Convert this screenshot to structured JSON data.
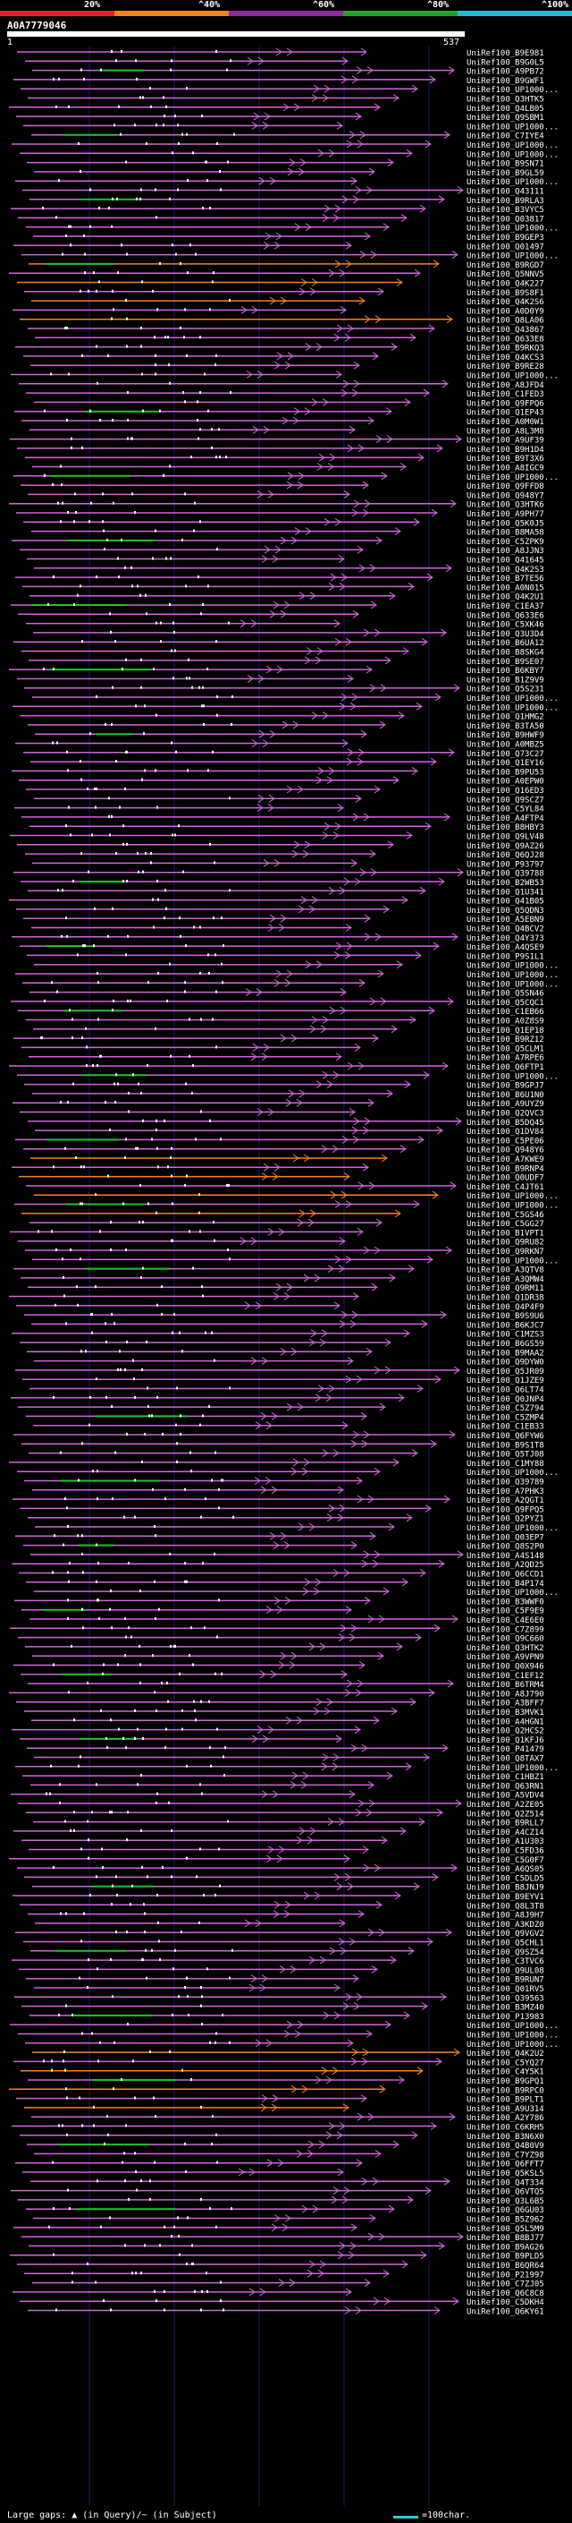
{
  "legend": {
    "segments": [
      {
        "label": "20%",
        "color": "#e3212a"
      },
      {
        "label": "^40%",
        "color": "#f58220"
      },
      {
        "label": "^60%",
        "color": "#8b2b9e"
      },
      {
        "label": "^80%",
        "color": "#22a32a"
      },
      {
        "label": "^100%",
        "color": "#28b8d6"
      }
    ]
  },
  "query": {
    "id": "A0A7779046",
    "start": "1",
    "end": "537"
  },
  "footer": {
    "text": "Large gaps: ▲ (in Query)/~ (in Subject)",
    "scale_label": "=100char."
  },
  "hits": [
    "UniRef100_B9E981",
    "UniRef100_B9G0L5",
    "UniRef100_A9PB72",
    "UniRef100_B9GWF1",
    "UniRef100_UP1000...",
    "UniRef100_Q3HTK5",
    "UniRef100_Q4LB05",
    "UniRef100_Q9SBM1",
    "UniRef100_UP1000...",
    "UniRef100_C7IYE4",
    "UniRef100_UP1000...",
    "UniRef100_UP1000...",
    "UniRef100_B9SN71",
    "UniRef100_B9GL59",
    "UniRef100_UP1000...",
    "UniRef100_Q43111",
    "UniRef100_B9RLA3",
    "UniRef100_B3VYC5",
    "UniRef100_Q03817",
    "UniRef100_UP1000...",
    "UniRef100_B9GEP3",
    "UniRef100_Q01497",
    "UniRef100_UP1000...",
    "UniRef100_B9RGD7",
    "UniRef100_Q5NNV5",
    "UniRef100_Q4K227",
    "UniRef100_B9S8F1",
    "UniRef100_Q4K2S6",
    "UniRef100_A0D0Y9",
    "UniRef100_Q8LA06",
    "UniRef100_Q43867",
    "UniRef100_Q633E8",
    "UniRef100_B9RKQ3",
    "UniRef100_Q4KCS3",
    "UniRef100_B9RE28",
    "UniRef100_UP1000...",
    "UniRef100_A8JFD4",
    "UniRef100_C1FED3",
    "UniRef100_Q9FPQ6",
    "UniRef100_Q1EP43",
    "UniRef100_A0M0W1",
    "UniRef100_A8L3M8",
    "UniRef100_A9UF39",
    "UniRef100_B9H1D4",
    "UniRef100_B9T3X6",
    "UniRef100_A8IGC9",
    "UniRef100_UP1000...",
    "UniRef100_Q9FFD8",
    "UniRef100_Q948Y7",
    "UniRef100_Q3HTK6",
    "UniRef100_A9PH77",
    "UniRef100_Q5K0J5",
    "UniRef100_B8MA58",
    "UniRef100_C5ZPK9",
    "UniRef100_A8JJN3",
    "UniRef100_Q41645",
    "UniRef100_Q4K2S3",
    "UniRef100_B7TE56",
    "UniRef100_A0N015",
    "UniRef100_Q4K2U1",
    "UniRef100_C1EA37",
    "UniRef100_Q633E6",
    "UniRef100_C5XK46",
    "UniRef100_Q3U3D4",
    "UniRef100_B6UA12",
    "UniRef100_B8SKG4",
    "UniRef100_B9SE07",
    "UniRef100_B6KBY7",
    "UniRef100_B1Z9V9",
    "UniRef100_Q5S231",
    "UniRef100_UP1000...",
    "UniRef100_UP1000...",
    "UniRef100_Q1HMG2",
    "UniRef100_B3TA50",
    "UniRef100_B9HWF9",
    "UniRef100_A0MBZ5",
    "UniRef100_Q73C27",
    "UniRef100_Q1EY16",
    "UniRef100_B9PU53",
    "UniRef100_A0EPW0",
    "UniRef100_Q16ED3",
    "UniRef100_Q9SCZ7",
    "UniRef100_C5YL84",
    "UniRef100_A4FTP4",
    "UniRef100_B8HBY3",
    "UniRef100_Q9LV48",
    "UniRef100_Q9AZ26",
    "UniRef100_Q6QJ28",
    "UniRef100_P93797",
    "UniRef100_Q39788",
    "UniRef100_B2WB53",
    "UniRef100_Q1U341",
    "UniRef100_Q41B05",
    "UniRef100_Q5QDN3",
    "UniRef100_A5EBN9",
    "UniRef100_Q4BCV2",
    "UniRef100_Q4Y373",
    "UniRef100_A4QSE9",
    "UniRef100_P9S1L1",
    "UniRef100_UP1000...",
    "UniRef100_UP1000...",
    "UniRef100_UP1000...",
    "UniRef100_Q5SN46",
    "UniRef100_Q5CQC1",
    "UniRef100_C1EB66",
    "UniRef100_A0Z8S9",
    "UniRef100_Q1EP18",
    "UniRef100_B9RZ12",
    "UniRef100_Q5CLM1",
    "UniRef100_A7RPE6",
    "UniRef100_Q6FTP1",
    "UniRef100_UP1000...",
    "UniRef100_B9GPJ7",
    "UniRef100_B6U1N0",
    "UniRef100_A9UYZ9",
    "UniRef100_Q2QVC3",
    "UniRef100_B5DQ45",
    "UniRef100_Q1DV84",
    "UniRef100_C5PE06",
    "UniRef100_Q948Y6",
    "UniRef100_A7KWE9",
    "UniRef100_B9RNP4",
    "UniRef100_Q0UDF7",
    "UniRef100_C4JT61",
    "UniRef100_UP1000...",
    "UniRef100_UP1000...",
    "UniRef100_C5GS46",
    "UniRef100_C5GG27",
    "UniRef100_B1VPT1",
    "UniRef100_Q9RU82",
    "UniRef100_Q9RKN7",
    "UniRef100_UP1000...",
    "UniRef100_A3QTV8",
    "UniRef100_A3QMW4",
    "UniRef100_Q9RM11",
    "UniRef100_Q1DR38",
    "UniRef100_Q4P4F9",
    "UniRef100_B9S9U6",
    "UniRef100_B6KJC7",
    "UniRef100_C1MZS3",
    "UniRef100_B6GS59",
    "UniRef100_B9MAA2",
    "UniRef100_Q9DYW0",
    "UniRef100_Q5JR09",
    "UniRef100_Q1JZE9",
    "UniRef100_Q6LT74",
    "UniRef100_Q0JNP4",
    "UniRef100_C5Z794",
    "UniRef100_C5ZMP4",
    "UniRef100_C1EB33",
    "UniRef100_Q6FYW6",
    "UniRef100_B9S1T8",
    "UniRef100_Q5TJ08",
    "UniRef100_C1MY88",
    "UniRef100_UP1000...",
    "UniRef100_Q39789",
    "UniRef100_A7PHK3",
    "UniRef100_A2QGT1",
    "UniRef100_Q9FPQ5",
    "UniRef100_Q2PYZ1",
    "UniRef100_UP1000...",
    "UniRef100_Q03EP7",
    "UniRef100_Q8S2P0",
    "UniRef100_A4S148",
    "UniRef100_A2QD25",
    "UniRef100_Q6CCD1",
    "UniRef100_B4P174",
    "UniRef100_UP1000...",
    "UniRef100_B3WWF0",
    "UniRef100_C5F9E9",
    "UniRef100_C4E6E0",
    "UniRef100_C7Z899",
    "UniRef100_Q9C660",
    "UniRef100_Q3HTK2",
    "UniRef100_A9VPN9",
    "UniRef100_Q0X946",
    "UniRef100_C1EF12",
    "UniRef100_B6TRM4",
    "UniRef100_A8J790",
    "UniRef100_A3BFF7",
    "UniRef100_B3MVK1",
    "UniRef100_A4HGN1",
    "UniRef100_Q2HCS2",
    "UniRef100_Q1KFJ6",
    "UniRef100_P41479",
    "UniRef100_Q8TAX7",
    "UniRef100_UP1000...",
    "UniRef100_C1HBZ1",
    "UniRef100_Q63RN1",
    "UniRef100_A5VDV4",
    "UniRef100_A2ZE05",
    "UniRef100_Q2Z514",
    "UniRef100_B9RLL7",
    "UniRef100_A4CZ14",
    "UniRef100_A1U303",
    "UniRef100_C5FD36",
    "UniRef100_C5G0F7",
    "UniRef100_A6QS05",
    "UniRef100_C5DLD5",
    "UniRef100_B8JNJ9",
    "UniRef100_B9EYV1",
    "UniRef100_Q8L3T8",
    "UniRef100_A8J9H7",
    "UniRef100_A3KDZ0",
    "UniRef100_Q9VGV2",
    "UniRef100_Q5CHL1",
    "UniRef100_Q9SZ54",
    "UniRef100_C3TVC6",
    "UniRef100_Q9UL08",
    "UniRef100_B9RUN7",
    "UniRef100_Q01RV5",
    "UniRef100_Q39563",
    "UniRef100_B3MZ40",
    "UniRef100_P13983",
    "UniRef100_UP1000...",
    "UniRef100_UP1000...",
    "UniRef100_UP1000...",
    "UniRef100_Q4K2U2",
    "UniRef100_C5YQ27",
    "UniRef100_C4Y5K1",
    "UniRef100_B9GPQ1",
    "UniRef100_B9RPC0",
    "UniRef100_B9PLT1",
    "UniRef100_A9U314",
    "UniRef100_A2Y786",
    "UniRef100_C6KRH5",
    "UniRef100_B3N6X0",
    "UniRef100_Q4B0V9",
    "UniRef100_C7YZ98",
    "UniRef100_Q6FFT7",
    "UniRef100_Q5KSL5",
    "UniRef100_Q4T334",
    "UniRef100_Q6VTQ5",
    "UniRef100_Q3L6B5",
    "UniRef100_Q6GU03",
    "UniRef100_B5Z962",
    "UniRef100_Q5L5M9",
    "UniRef100_B8BJ77",
    "UniRef100_B9AG26",
    "UniRef100_B9PLD5",
    "UniRef100_B6QR64",
    "UniRef100_P21997",
    "UniRef100_C7ZJ05",
    "UniRef100_Q6C8C8",
    "UniRef100_C5DKH4",
    "UniRef100_Q6KY61"
  ]
}
